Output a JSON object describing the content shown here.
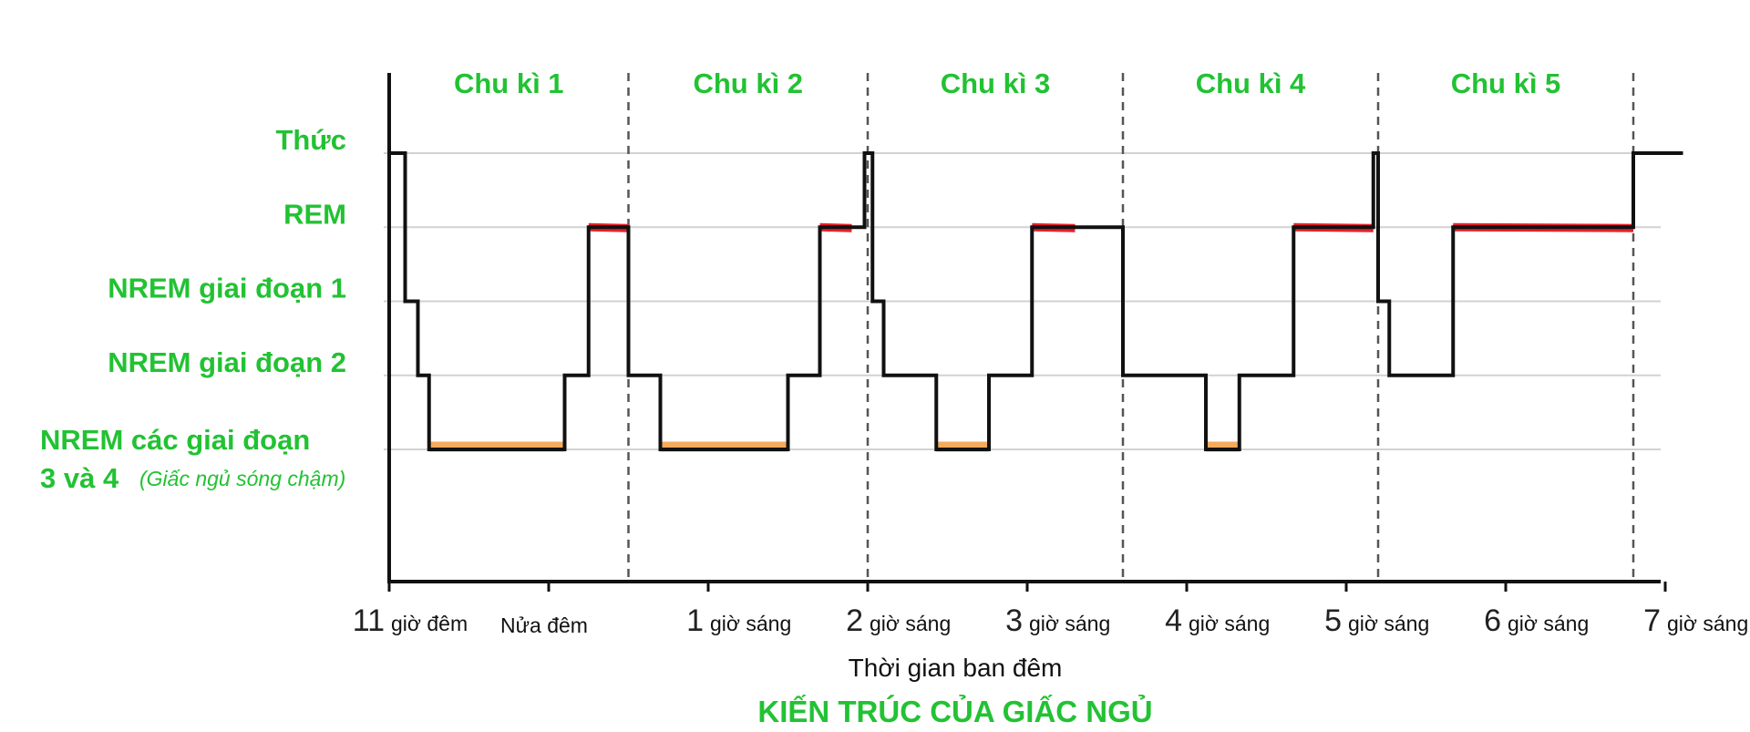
{
  "colors": {
    "label_green": "#22c233",
    "rem_highlight": "#e8202a",
    "slow_wave_highlight": "#f6aa5c",
    "hypnogram_line": "#111111",
    "gridline": "#d2d2d2"
  },
  "chart_data": {
    "type": "line",
    "title": "KIẾN TRÚC CỦA GIẤC NGỦ",
    "xlabel": "Thời gian ban đêm",
    "ylabel": "",
    "x_unit": "hours after 11 PM",
    "xlim": [
      0,
      8.1
    ],
    "x_ticks": [
      {
        "value": 0,
        "num": "11",
        "word": "giờ đêm"
      },
      {
        "value": 1,
        "num": "",
        "word": "Nửa đêm"
      },
      {
        "value": 2,
        "num": "1",
        "word": "giờ sáng"
      },
      {
        "value": 3,
        "num": "2",
        "word": "giờ sáng"
      },
      {
        "value": 4,
        "num": "3",
        "word": "giờ sáng"
      },
      {
        "value": 5,
        "num": "4",
        "word": "giờ sáng"
      },
      {
        "value": 6,
        "num": "5",
        "word": "giờ sáng"
      },
      {
        "value": 7,
        "num": "6",
        "word": "giờ sáng"
      },
      {
        "value": 8,
        "num": "7",
        "word": "giờ sáng"
      }
    ],
    "y_levels": [
      {
        "level": 5,
        "label": "Thức",
        "note": ""
      },
      {
        "level": 4,
        "label": "REM",
        "note": ""
      },
      {
        "level": 3,
        "label": "NREM giai đoạn 1",
        "note": ""
      },
      {
        "level": 2,
        "label": "NREM giai đoạn 2",
        "note": ""
      },
      {
        "level": 1,
        "label": "NREM các giai đoạn",
        "label_line2": "3 và 4",
        "note": "(Giấc ngủ sóng chậm)"
      }
    ],
    "ylim": [
      -0.8,
      5.6
    ],
    "grid": true,
    "cycles": [
      {
        "label": "Chu kì 1",
        "start": 0,
        "end": 1.5
      },
      {
        "label": "Chu kì 2",
        "start": 1.5,
        "end": 3.0
      },
      {
        "label": "Chu kì 3",
        "start": 3.0,
        "end": 4.6
      },
      {
        "label": "Chu kì 4",
        "start": 4.6,
        "end": 6.2
      },
      {
        "label": "Chu kì 5",
        "start": 6.2,
        "end": 7.8
      }
    ],
    "hypnogram": {
      "x": [
        0,
        0.1,
        0.18,
        0.25,
        1.1,
        1.25,
        1.5,
        1.7,
        2.5,
        2.7,
        2.98,
        3.03,
        3.1,
        3.43,
        3.76,
        4.03,
        4.3,
        4.6,
        5.12,
        5.33,
        5.67,
        6.17,
        6.2,
        6.27,
        6.67,
        7.8,
        8.1
      ],
      "y": [
        5,
        3,
        2,
        1,
        2,
        4,
        2,
        1,
        2,
        4,
        5,
        3,
        2,
        1,
        2,
        4,
        4,
        2,
        1,
        2,
        4,
        5,
        3,
        2,
        4,
        5,
        5
      ]
    },
    "slow_wave_periods": [
      [
        0.25,
        1.1
      ],
      [
        1.7,
        2.5
      ],
      [
        3.43,
        3.76
      ],
      [
        5.12,
        5.33
      ]
    ],
    "rem_periods": [
      [
        1.25,
        1.5
      ],
      [
        2.7,
        2.9
      ],
      [
        4.03,
        4.3
      ],
      [
        5.67,
        6.17
      ],
      [
        6.67,
        7.8
      ]
    ]
  }
}
